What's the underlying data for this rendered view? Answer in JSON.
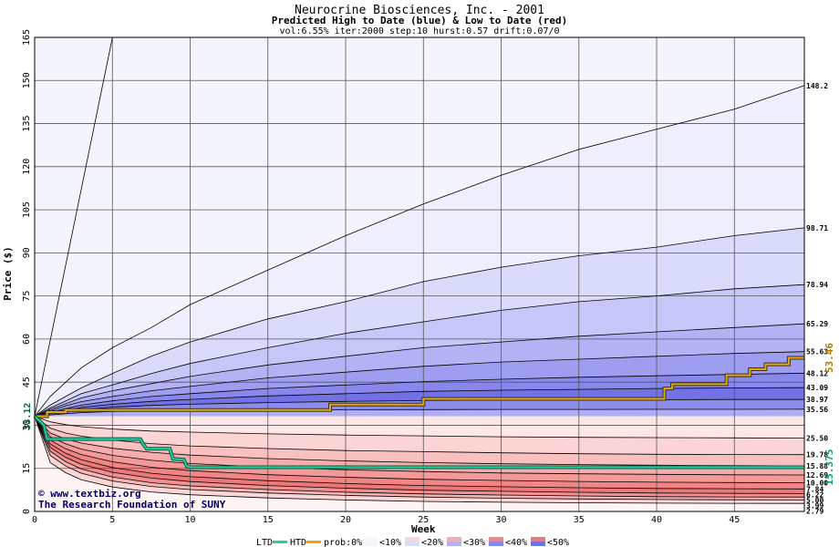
{
  "chart_data": {
    "type": "area",
    "title": "Neurocrine Biosciences, Inc. - 2001",
    "subtitle": "Predicted High to Date (blue) &  Low to Date (red)",
    "params": "vol:6.55% iter:2000 step:10 hurst:0.57 drift:0.07/0",
    "xlabel": "Week",
    "ylabel": "Price ($)",
    "xlim": [
      0,
      49.5
    ],
    "ylim": [
      0,
      165
    ],
    "x_ticks": [
      "0",
      "5",
      "10",
      "15",
      "20",
      "25",
      "30",
      "35",
      "40",
      "45"
    ],
    "y_ticks": [
      "0",
      "15",
      "30",
      "45",
      "60",
      "75",
      "90",
      "105",
      "120",
      "135",
      "150",
      "165"
    ],
    "grid": true,
    "start_price": 33.12,
    "start_label": "33.12",
    "x": [
      0,
      1,
      2,
      3,
      5,
      7.5,
      10,
      15,
      20,
      25,
      30,
      35,
      40,
      45,
      49.5
    ],
    "high_bands": [
      {
        "label": "148.2",
        "values": [
          33.12,
          40,
          45,
          50,
          57,
          64,
          72,
          84,
          96,
          107,
          117,
          126,
          133,
          140,
          148.2
        ]
      },
      {
        "label": "98.71",
        "values": [
          33.12,
          37,
          40,
          43,
          48,
          54,
          59,
          67,
          73,
          80,
          85,
          89,
          92,
          96,
          98.71
        ]
      },
      {
        "label": "78.94",
        "values": [
          33.12,
          36,
          38.5,
          41,
          44,
          48,
          51.5,
          57,
          62,
          66,
          70,
          73,
          75,
          77.5,
          78.94
        ]
      },
      {
        "label": "65.29",
        "values": [
          33.12,
          35.5,
          37.5,
          39.5,
          42,
          44.5,
          47,
          51,
          54,
          57,
          59,
          61,
          62.5,
          64,
          65.29
        ]
      },
      {
        "label": "55.63",
        "values": [
          33.12,
          35,
          36.8,
          38.2,
          40,
          42,
          43.5,
          46.5,
          48.5,
          50.5,
          52,
          53,
          54,
          55,
          55.63
        ]
      },
      {
        "label": "48.12",
        "values": [
          33.12,
          34.5,
          35.8,
          37,
          38.5,
          40,
          41,
          42.8,
          44,
          45.2,
          46,
          46.7,
          47.2,
          47.7,
          48.12
        ]
      },
      {
        "label": "43.09",
        "values": [
          33.12,
          34.2,
          35.2,
          36.2,
          37.3,
          38.3,
          39,
          40.2,
          41,
          41.8,
          42.2,
          42.5,
          42.8,
          43,
          43.09
        ]
      },
      {
        "label": "38.97",
        "values": [
          33.12,
          34,
          34.8,
          35.5,
          36.3,
          36.9,
          37.3,
          37.9,
          38.3,
          38.6,
          38.75,
          38.85,
          38.9,
          38.95,
          38.97
        ]
      },
      {
        "label": "35.56",
        "values": [
          33.12,
          33.6,
          34,
          34.4,
          34.8,
          35,
          35.15,
          35.3,
          35.4,
          35.45,
          35.5,
          35.52,
          35.54,
          35.55,
          35.56
        ]
      }
    ],
    "low_bands": [
      {
        "label": "25.50",
        "values": [
          33.12,
          31.2,
          30.2,
          29.5,
          28.7,
          28,
          27.6,
          27,
          26.6,
          26.3,
          26,
          25.8,
          25.7,
          25.6,
          25.5
        ]
      },
      {
        "label": "19.78",
        "values": [
          33.12,
          29,
          27.3,
          26.2,
          24.8,
          23.6,
          22.8,
          21.9,
          21.2,
          20.8,
          20.4,
          20.1,
          19.9,
          19.8,
          19.78
        ]
      },
      {
        "label": "15.88",
        "values": [
          33.12,
          27.3,
          25.2,
          23.8,
          22,
          20.6,
          19.6,
          18.4,
          17.6,
          17,
          16.6,
          16.3,
          16.1,
          15.95,
          15.88
        ]
      },
      {
        "label": "12.69",
        "values": [
          33.12,
          26,
          23.5,
          21.7,
          19.5,
          17.8,
          16.7,
          15.4,
          14.5,
          13.9,
          13.4,
          13.1,
          12.9,
          12.75,
          12.69
        ]
      },
      {
        "label": "10.00",
        "values": [
          33.12,
          24.8,
          21.8,
          19.8,
          17.3,
          15.4,
          14.2,
          12.8,
          11.9,
          11.2,
          10.8,
          10.45,
          10.2,
          10.05,
          10.0
        ]
      },
      {
        "label": "7.84",
        "values": [
          33.12,
          23.5,
          20.2,
          18,
          15.3,
          13.3,
          12.1,
          10.7,
          9.7,
          9.0,
          8.6,
          8.25,
          8.0,
          7.9,
          7.84
        ]
      },
      {
        "label": "6.22",
        "values": [
          33.12,
          22.3,
          18.8,
          16.4,
          13.6,
          11.6,
          10.4,
          9.0,
          8.1,
          7.4,
          7.0,
          6.65,
          6.4,
          6.28,
          6.22
        ]
      },
      {
        "label": "5.00",
        "values": [
          33.12,
          21,
          17.3,
          14.8,
          12,
          10,
          8.9,
          7.6,
          6.7,
          6.1,
          5.7,
          5.4,
          5.15,
          5.05,
          5.0
        ]
      },
      {
        "label": "3.99",
        "values": [
          33.12,
          19.5,
          15.8,
          13.3,
          10.6,
          8.7,
          7.6,
          6.4,
          5.6,
          5.0,
          4.6,
          4.35,
          4.15,
          4.05,
          3.99
        ]
      },
      {
        "label": "2.79",
        "values": [
          33.12,
          17,
          13.5,
          11,
          8.5,
          6.8,
          5.8,
          4.7,
          4.0,
          3.5,
          3.2,
          3.0,
          2.9,
          2.82,
          2.79
        ]
      }
    ],
    "extreme_high_line": {
      "x": [
        0,
        5
      ],
      "y": [
        33.12,
        165
      ]
    },
    "htd": {
      "label": "53.46",
      "color": "#e8a800",
      "x": [
        0,
        0.8,
        0.8,
        2,
        2,
        19,
        19,
        25,
        25,
        40.5,
        40.5,
        41,
        41,
        44.5,
        44.5,
        46,
        46,
        47,
        47,
        48.5,
        48.5,
        49.5
      ],
      "y": [
        33.12,
        33.12,
        34.6,
        34.6,
        35.3,
        35.3,
        37.2,
        37.2,
        39.2,
        39.2,
        42.8,
        42.8,
        44.3,
        44.3,
        47.4,
        47.4,
        49.5,
        49.5,
        51.2,
        51.2,
        53.46,
        53.46
      ]
    },
    "ltd": {
      "label": "15.375",
      "color": "#20d0a0",
      "x": [
        0,
        0.6,
        0.8,
        6.8,
        7,
        7.2,
        8.7,
        8.9,
        9.6,
        9.8,
        10,
        49.5
      ],
      "y": [
        33.12,
        30,
        25.2,
        25.2,
        23.2,
        21.8,
        21.8,
        18.3,
        18,
        15.6,
        15.375,
        15.375
      ]
    },
    "blue_fills": [
      "#eeeefc",
      "#dadafa",
      "#c6c6f8",
      "#b2b2f4",
      "#9e9ef0",
      "#8888ec",
      "#7272e6",
      "#8c8cec",
      "#aeaef4"
    ],
    "red_fills": [
      "#fde6e6",
      "#fbd4d4",
      "#f9c0c0",
      "#f6acac",
      "#f49898",
      "#f18484",
      "#ef7777",
      "#f29090",
      "#f6b4b4",
      "#fad6d6"
    ],
    "outer_blue_fill": "#f4f4fd",
    "outer_red_fill": "#fff4f4",
    "legend": {
      "ltd_label": "LTD",
      "htd_label": "HTD",
      "prob_label": "prob:0%",
      "items": [
        "<10%",
        "<20%",
        "<30%",
        "<40%",
        "<50%"
      ]
    },
    "watermark": [
      "© www.textbiz.org",
      "The Research Foundation of SUNY"
    ]
  }
}
